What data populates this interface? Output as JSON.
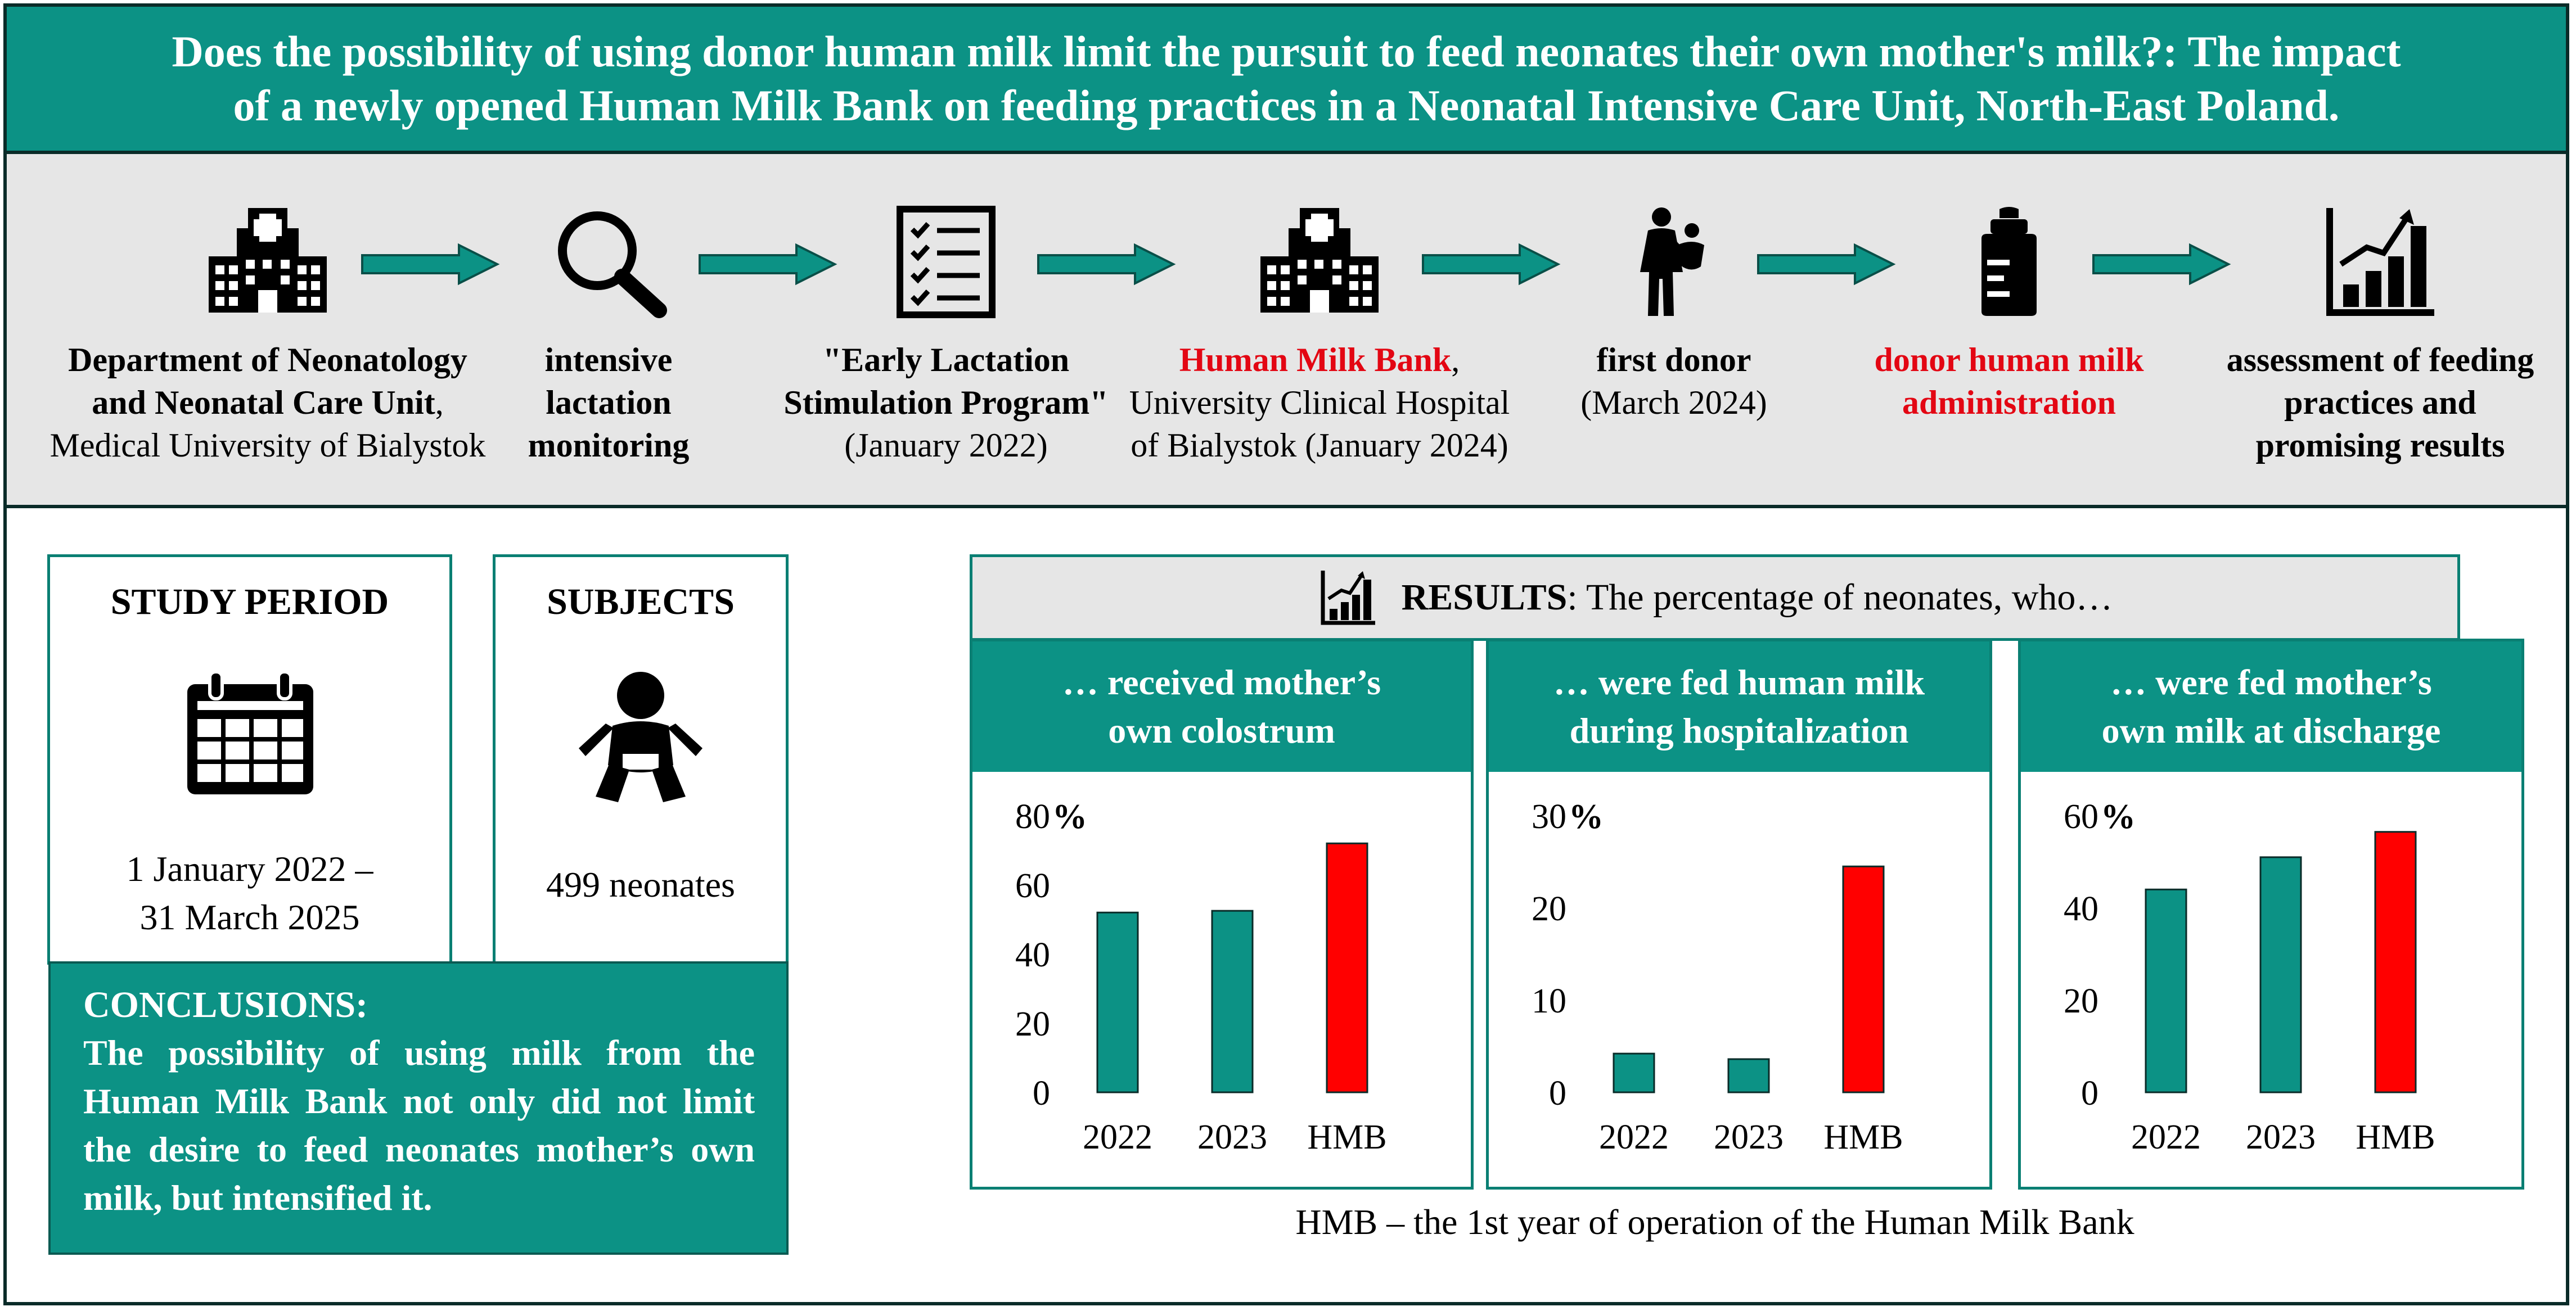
{
  "title": {
    "line1": "Does the possibility of using donor human milk limit the pursuit to feed neonates their own mother's milk?: The impact",
    "line2": "of a newly opened Human Milk Bank on feeding practices in a Neonatal Intensive Care Unit, North-East Poland."
  },
  "timeline": [
    {
      "icon": "hospital-icon",
      "line1": "Department of Neonatology",
      "line2": "and Neonatal Care Unit",
      "line2_suffix": ",",
      "line3": "Medical University of Bialystok"
    },
    {
      "icon": "magnifier-icon",
      "line1": "intensive",
      "line2": "lactation",
      "line3": "monitoring"
    },
    {
      "icon": "checklist-icon",
      "line1": "\"Early Lactation",
      "line2": "Stimulation Program\"",
      "line3": "(January 2022)"
    },
    {
      "icon": "hospital-icon",
      "line1": "Human Milk Bank",
      "line1_suffix": ",",
      "line2": "University Clinical Hospital",
      "line3": "of Bialystok (January 2024)"
    },
    {
      "icon": "mother-child-icon",
      "line1": "first donor",
      "line2": "(March 2024)"
    },
    {
      "icon": "milk-bottle-icon",
      "line1": "donor human milk",
      "line2": "administration"
    },
    {
      "icon": "growth-chart-icon",
      "line1": "assessment of feeding",
      "line2": "practices and",
      "line3": "promising results"
    }
  ],
  "study_period": {
    "heading": "STUDY PERIOD",
    "icon": "calendar-icon",
    "line1": "1 January 2022 –",
    "line2": "31 March 2025"
  },
  "subjects": {
    "heading": "SUBJECTS",
    "icon": "baby-icon",
    "text": "499 neonates"
  },
  "conclusions": {
    "heading": "CONCLUSIONS:",
    "text": "The possibility of using milk from the Human Milk Bank not only did not limit the desire to feed neonates mother’s own milk, but intensified it."
  },
  "results": {
    "bold": "RESULTS",
    "rest": ": The percentage of neonates, who…"
  },
  "colors": {
    "teal": "#0c9285",
    "red": "#ff0000",
    "dark": "#0a2b28"
  },
  "chart_data": [
    {
      "type": "bar",
      "title_line1": "… received mother’s",
      "title_line2": "own colostrum",
      "categories": [
        "2022",
        "2023",
        "HMB"
      ],
      "values": [
        52,
        52.5,
        72
      ],
      "colors": [
        "#0c9285",
        "#0c9285",
        "#ff0000"
      ],
      "yticks": [
        0,
        20,
        40,
        60,
        80
      ],
      "ylim": [
        0,
        80
      ],
      "unit": "%"
    },
    {
      "type": "bar",
      "title_line1": "… were fed human milk",
      "title_line2": "during hospitalization",
      "categories": [
        "2022",
        "2023",
        "HMB"
      ],
      "values": [
        4.2,
        3.6,
        24.5
      ],
      "colors": [
        "#0c9285",
        "#0c9285",
        "#ff0000"
      ],
      "yticks": [
        0,
        10,
        20,
        30
      ],
      "ylim": [
        0,
        30
      ],
      "unit": "%"
    },
    {
      "type": "bar",
      "title_line1": "… were fed mother’s",
      "title_line2": "own milk at discharge",
      "categories": [
        "2022",
        "2023",
        "HMB"
      ],
      "values": [
        44,
        51,
        56.5
      ],
      "colors": [
        "#0c9285",
        "#0c9285",
        "#ff0000"
      ],
      "yticks": [
        0,
        20,
        40,
        60
      ],
      "ylim": [
        0,
        60
      ],
      "unit": "%"
    }
  ],
  "footnote": "HMB – the 1st year of operation of the Human Milk Bank"
}
